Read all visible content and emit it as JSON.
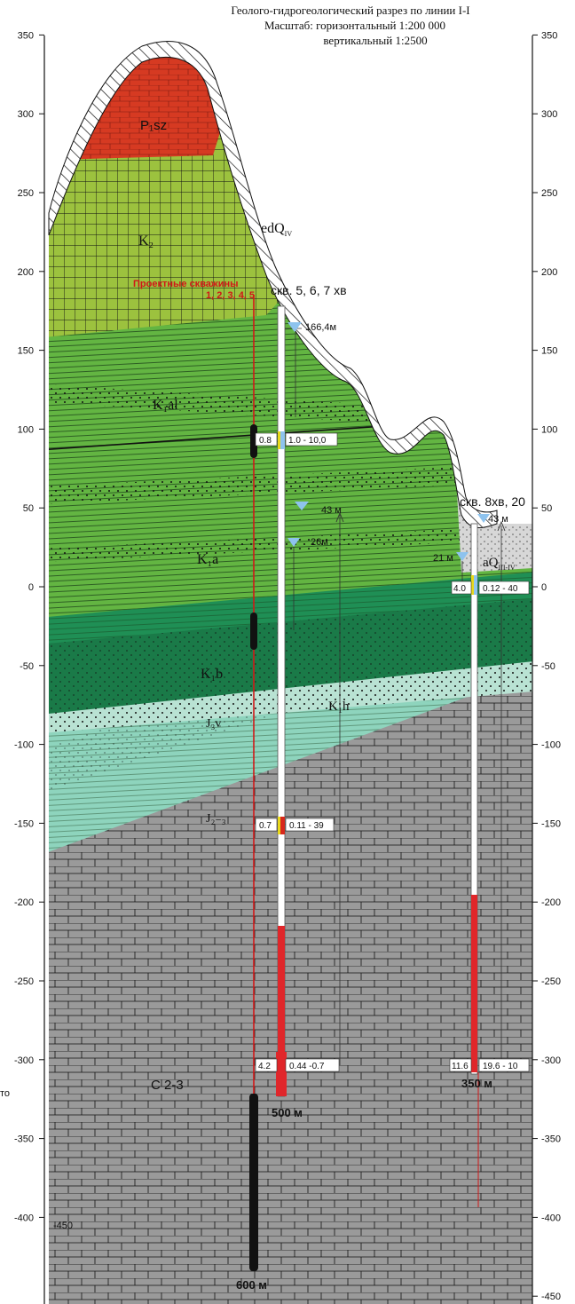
{
  "title": {
    "line1": "Геолого-гидрогеологический разрез по линии I-I",
    "line2": "Масштаб: горизонтальный 1:200 000",
    "line3": "вертикальный 1:2500"
  },
  "axis": {
    "left_ticks": [
      "350",
      "300",
      "250",
      "200",
      "150",
      "100",
      "50",
      "0",
      "-50",
      "-100",
      "-150",
      "-200",
      "-250",
      "-300",
      "-350",
      "-400"
    ],
    "right_ticks": [
      "350",
      "300",
      "250",
      "200",
      "150",
      "100",
      "50",
      "0",
      "-50",
      "-100",
      "-150",
      "-200",
      "-250",
      "-300",
      "-350",
      "-400",
      "-450"
    ],
    "left_extra_label": "-450",
    "margin_fragment": "то"
  },
  "units": {
    "p1sz": "P₁sz",
    "k2": "K₂",
    "edq": "edQ",
    "edq_sub": "IV",
    "k1al": "K₁al",
    "k1a": "K₁a",
    "k1b": "K₁b",
    "k1h": "K₁h",
    "j3v": "J₃v",
    "j23": "J₂₋₃",
    "c23": "C 2-3",
    "aq": "aQ",
    "aq_sub": "III-IV"
  },
  "projected_wells": {
    "line1": "Проектные скважины",
    "line2": "1, 2, 3, 4, 5"
  },
  "well_a": {
    "title": "скв. 5, 6, 7 хв",
    "static_level": "166,4м",
    "level_43": "43 м",
    "level_26": "26м",
    "interval1_left": "0.8",
    "interval1_right": "1.0 - 10,0",
    "interval2_left": "0.7",
    "interval2_right": "0.11 - 39",
    "interval3_left": "4.2",
    "interval3_right": "0.44 -0.7",
    "depth": "500 м",
    "projected_depth": "600 м"
  },
  "well_b": {
    "title": "скв. 8хв, 20",
    "level_43": "43 м",
    "level_21": "21 м",
    "interval1_left": "4.0",
    "interval1_right": "0.12 - 40",
    "interval2_left": "11.6",
    "interval2_right": "19.6 - 10",
    "depth": "350 м"
  },
  "colors": {
    "permian_red": "#d63a22",
    "k2_green": "#9cc23e",
    "k1_green": "#63b542",
    "k1b_green": "#1f8f55",
    "jurassic_teal": "#8ed4bd",
    "carbon_gray": "#9a9a9a",
    "well_red": "#e0262a",
    "water_blue": "#8ec3ee"
  }
}
